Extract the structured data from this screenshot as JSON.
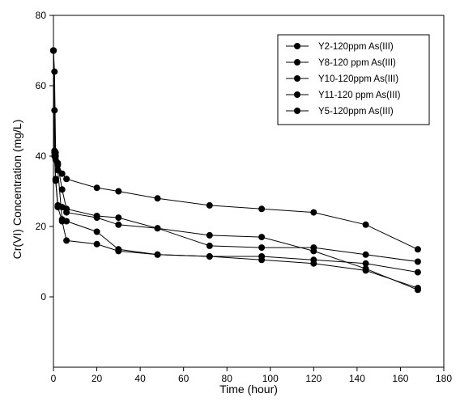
{
  "chart_data": {
    "type": "line",
    "title": "",
    "xlabel": "Time (hour)",
    "ylabel": "Cr(VI) Concentration (mg/L)",
    "xlim": [
      0,
      180
    ],
    "ylim": [
      -20,
      80
    ],
    "xticks": [
      0,
      20,
      40,
      60,
      80,
      100,
      120,
      140,
      160,
      180
    ],
    "yticks": [
      0,
      20,
      40,
      60,
      80
    ],
    "grid": false,
    "legend_position": "top-right",
    "series": [
      {
        "name": "Y2-120ppm  As(III)",
        "x": [
          0,
          0.5,
          1,
          2,
          4,
          6,
          20,
          30,
          48,
          72,
          96,
          120,
          144,
          168
        ],
        "y": [
          70,
          64,
          41,
          38,
          35,
          33.5,
          31,
          30,
          28,
          26,
          25,
          24,
          20.5,
          13.5
        ]
      },
      {
        "name": "Y8-120 ppm As(III)",
        "x": [
          0,
          0.5,
          1,
          2,
          4,
          6,
          20,
          30,
          48,
          72,
          96,
          120,
          144,
          168
        ],
        "y": [
          70,
          53,
          40,
          37.5,
          30.5,
          25,
          23,
          22.5,
          19.5,
          17.5,
          17,
          13,
          8,
          2
        ]
      },
      {
        "name": "Y10-120ppm As(III)",
        "x": [
          0,
          0.5,
          1,
          2,
          4,
          6,
          20,
          30,
          48,
          72,
          96,
          120,
          144,
          168
        ],
        "y": [
          70,
          41,
          33.5,
          26,
          25.5,
          24,
          22.5,
          20.5,
          19.5,
          14.5,
          14,
          14,
          12,
          10
        ]
      },
      {
        "name": "Y11-120 ppm As(III)",
        "x": [
          0,
          0.5,
          1,
          2,
          4,
          6,
          20,
          30,
          48,
          72,
          96,
          120,
          144,
          168
        ],
        "y": [
          70,
          41.5,
          39,
          36,
          22,
          21.5,
          18.5,
          13.5,
          12,
          11.5,
          11.5,
          10.5,
          9.5,
          7
        ]
      },
      {
        "name": "Y5-120ppm As(III)",
        "x": [
          0,
          0.5,
          1,
          2,
          4,
          6,
          20,
          30,
          48,
          72,
          96,
          120,
          144,
          168
        ],
        "y": [
          70,
          40,
          33,
          25.5,
          21.5,
          16,
          15,
          13,
          12,
          11.5,
          10.5,
          9.5,
          7.5,
          2.5
        ]
      }
    ]
  }
}
